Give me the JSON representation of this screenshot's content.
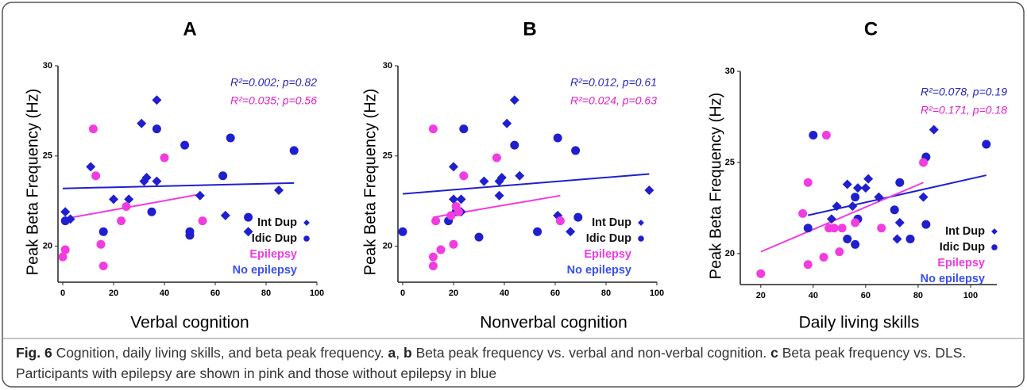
{
  "chart_data": [
    {
      "type": "scatter",
      "title": "A",
      "x_label": "Verbal cognition",
      "y_label": "Peak Beta Frequency (Hz)",
      "xlim": [
        0,
        100
      ],
      "xticks": [
        0,
        20,
        40,
        60,
        80,
        100
      ],
      "ylim": [
        18,
        30
      ],
      "yticks": [
        20,
        25,
        30
      ],
      "series": [
        {
          "name": "Int Dup",
          "marker": "diamond",
          "color": "#1f1fd0",
          "label_color": "#111111",
          "x": [
            1,
            3,
            11,
            20,
            26,
            31,
            32,
            33,
            37,
            37,
            54,
            64,
            73,
            85
          ],
          "values": [
            21.9,
            21.5,
            24.4,
            22.6,
            22.6,
            26.8,
            23.6,
            23.8,
            28.1,
            23.6,
            22.8,
            21.7,
            20.8,
            23.1
          ]
        },
        {
          "name": "Idic Dup",
          "marker": "circle",
          "color": "#1f1fd0",
          "label_color": "#111111",
          "x": [
            1,
            16,
            35,
            37,
            48,
            50,
            50,
            63,
            66,
            73,
            91
          ],
          "values": [
            21.4,
            20.8,
            21.9,
            26.5,
            25.6,
            20.8,
            20.6,
            23.9,
            26,
            21.6,
            25.3
          ]
        },
        {
          "name": "Epilepsy",
          "marker": "circle",
          "color": "#f03ce0",
          "label_color": "#f03ce0",
          "x": [
            0,
            1,
            12,
            13,
            15,
            16,
            23,
            25,
            40,
            55
          ],
          "values": [
            19.4,
            19.8,
            26.5,
            23.9,
            20.1,
            18.9,
            21.4,
            22.2,
            24.9,
            21.4
          ]
        }
      ],
      "legend_notes": [
        {
          "text": "No epilepsy",
          "color": "#3a4ff0"
        }
      ],
      "trend_lines": [
        {
          "color": "#1f1fd0",
          "x": [
            0,
            91
          ],
          "values": [
            23.2,
            23.5
          ]
        },
        {
          "color": "#f03ce0",
          "x": [
            0,
            55
          ],
          "values": [
            21.5,
            22.9
          ]
        }
      ],
      "annotations": [
        {
          "text": "R²=0.002; p=0.82",
          "color": "#2424b8"
        },
        {
          "text": "R²=0.035; p=0.56",
          "color": "#e020c8"
        }
      ]
    },
    {
      "type": "scatter",
      "title": "B",
      "x_label": "Nonverbal cognition",
      "y_label": "Peak Beta Frequency (Hz)",
      "xlim": [
        0,
        100
      ],
      "xticks": [
        0,
        20,
        40,
        60,
        80,
        100
      ],
      "ylim": [
        18,
        30
      ],
      "yticks": [
        20,
        25,
        30
      ],
      "series": [
        {
          "name": "Int Dup",
          "marker": "diamond",
          "color": "#1f1fd0",
          "label_color": "#111111",
          "x": [
            20,
            20,
            23,
            23,
            32,
            38,
            38,
            39,
            41,
            44,
            46,
            61,
            66,
            97
          ],
          "values": [
            24.4,
            22.6,
            21.9,
            22.6,
            23.6,
            23.6,
            22.8,
            23.8,
            26.8,
            28.1,
            23.9,
            21.7,
            20.8,
            23.1
          ]
        },
        {
          "name": "Idic Dup",
          "marker": "circle",
          "color": "#1f1fd0",
          "label_color": "#111111",
          "x": [
            0,
            18,
            21,
            24,
            30,
            44,
            53,
            61,
            68,
            69
          ],
          "values": [
            20.8,
            21.4,
            21.9,
            26.5,
            20.5,
            25.6,
            20.8,
            26,
            25.3,
            21.6
          ]
        },
        {
          "name": "Epilepsy",
          "marker": "circle",
          "color": "#f03ce0",
          "label_color": "#f03ce0",
          "x": [
            12,
            12,
            12,
            13,
            15,
            19,
            20,
            21,
            22,
            24,
            37,
            62
          ],
          "values": [
            18.9,
            19.4,
            26.5,
            21.4,
            19.8,
            21.7,
            20.1,
            22.2,
            21.9,
            23.9,
            24.9,
            21.4
          ]
        }
      ],
      "legend_notes": [
        {
          "text": "No epilepsy",
          "color": "#3a4ff0"
        }
      ],
      "trend_lines": [
        {
          "color": "#1f1fd0",
          "x": [
            0,
            97
          ],
          "values": [
            22.9,
            24
          ]
        },
        {
          "color": "#f03ce0",
          "x": [
            12,
            62
          ],
          "values": [
            21.6,
            22.8
          ]
        }
      ],
      "annotations": [
        {
          "text": "R²=0.012, p=0.61",
          "color": "#2424b8"
        },
        {
          "text": "R²=0.024, p=0.63",
          "color": "#e020c8"
        }
      ]
    },
    {
      "type": "scatter",
      "title": "C",
      "x_label": "Daily living skills",
      "y_label": "Peak Beta Frequency (Hz)",
      "xlim": [
        14,
        110
      ],
      "xticks": [
        20,
        40,
        60,
        80,
        100
      ],
      "ylim": [
        18.3,
        30
      ],
      "yticks": [
        20,
        25,
        30
      ],
      "series": [
        {
          "name": "Int Dup",
          "marker": "diamond",
          "color": "#1f1fd0",
          "label_color": "#111111",
          "x": [
            47,
            49,
            53,
            55,
            57,
            60,
            61,
            65,
            73,
            72,
            82,
            86
          ],
          "values": [
            21.9,
            22.6,
            23.8,
            22.6,
            23.6,
            23.6,
            24.1,
            23.1,
            21.7,
            20.8,
            23.1,
            26.8
          ]
        },
        {
          "name": "Idic Dup",
          "marker": "circle",
          "color": "#1f1fd0",
          "label_color": "#111111",
          "x": [
            38,
            40,
            53,
            56,
            56,
            57,
            71,
            73,
            77,
            83,
            83,
            106
          ],
          "values": [
            21.4,
            26.5,
            20.8,
            23.1,
            20.5,
            21.9,
            22.4,
            23.9,
            20.8,
            25.3,
            21.6,
            26
          ]
        },
        {
          "name": "Epilepsy",
          "marker": "circle",
          "color": "#f03ce0",
          "label_color": "#f03ce0",
          "x": [
            20,
            36,
            38,
            38,
            44,
            45,
            46,
            48,
            50,
            51,
            56,
            66,
            82
          ],
          "values": [
            18.9,
            22.2,
            23.9,
            19.4,
            19.8,
            26.5,
            21.4,
            21.4,
            20.1,
            21.4,
            21.7,
            21.4,
            25
          ]
        }
      ],
      "legend_notes": [
        {
          "text": "No epilepsy",
          "color": "#3a4ff0"
        }
      ],
      "trend_lines": [
        {
          "color": "#1f1fd0",
          "x": [
            38,
            106
          ],
          "values": [
            22.1,
            24.3
          ]
        },
        {
          "color": "#f03ce0",
          "x": [
            20,
            82
          ],
          "values": [
            20.1,
            23.9
          ]
        }
      ],
      "annotations": [
        {
          "text": "R²=0.078, p=0.19",
          "color": "#2424b8"
        },
        {
          "text": "R²=0.171, p=0.18",
          "color": "#e020c8"
        }
      ]
    }
  ],
  "caption": {
    "parts": [
      {
        "text": "Fig. 6",
        "bold": true
      },
      {
        "text": " Cognition, daily living skills, and beta peak frequency. ",
        "bold": false
      },
      {
        "text": "a",
        "bold": true
      },
      {
        "text": ", ",
        "bold": false
      },
      {
        "text": "b",
        "bold": true
      },
      {
        "text": " Beta peak frequency vs. verbal and non-verbal cognition. ",
        "bold": false
      },
      {
        "text": "c",
        "bold": true
      },
      {
        "text": " Beta peak frequency vs. DLS. Participants with epilepsy are shown in pink and those without epilepsy in blue",
        "bold": false
      }
    ]
  }
}
